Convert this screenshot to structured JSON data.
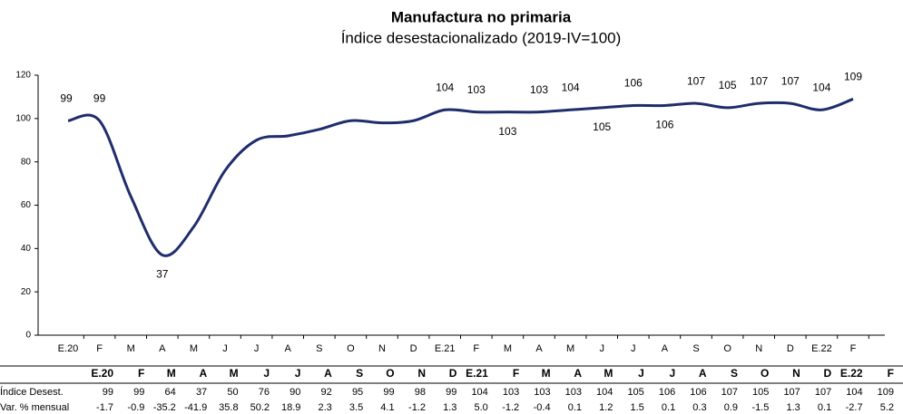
{
  "chart_data": {
    "type": "line",
    "title": "Manufactura no primaria",
    "subtitle": "Índice desestacionalizado (2019-IV=100)",
    "categories": [
      "E.20",
      "F",
      "M",
      "A",
      "M",
      "J",
      "J",
      "A",
      "S",
      "O",
      "N",
      "D",
      "E.21",
      "F",
      "M",
      "A",
      "M",
      "J",
      "J",
      "A",
      "S",
      "O",
      "N",
      "D",
      "E.22",
      "F"
    ],
    "series": [
      {
        "name": "Índice Desest.",
        "color": "#1f2d6b",
        "values": [
          99,
          99,
          64,
          37,
          50,
          76,
          90,
          92,
          95,
          99,
          98,
          99,
          104,
          103,
          103,
          103,
          104,
          105,
          106,
          106,
          107,
          105,
          107,
          107,
          104,
          109
        ]
      }
    ],
    "ylim": [
      0,
      120
    ],
    "yticks": [
      0,
      20,
      40,
      60,
      80,
      100,
      120
    ],
    "grid": false
  },
  "table": {
    "row_labels": [
      "Índice Desest.",
      "Var. % mensual"
    ],
    "var_mensual": [
      "-1.7",
      "-0.9",
      "-35.2",
      "-41.9",
      "35.8",
      "50.2",
      "18.9",
      "2.3",
      "3.5",
      "4.1",
      "-1.2",
      "1.3",
      "5.0",
      "-1.2",
      "-0.4",
      "0.1",
      "1.2",
      "1.5",
      "0.1",
      "0.3",
      "0.9",
      "-1.5",
      "1.3",
      "0.1",
      "-2.7",
      "5.2"
    ]
  }
}
